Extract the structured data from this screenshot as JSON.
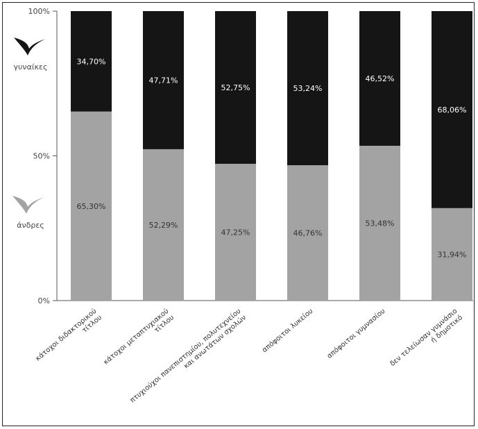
{
  "chart_data": {
    "type": "bar",
    "stacked": true,
    "percent": true,
    "categories": [
      "κάτοχοι διδακτορικού τίτλου",
      "κάτοχοι μεταπτυχιακού τίτλου",
      "πτυχιούχοι πανεπιστημίου, πολυτεχνείου και ανωτάτων σχολών",
      "απόφοιτοι λυκείου",
      "απόφοιτοι γυμνασίου",
      "δεν τελείωσαν γυμνάσιο ή δημοτικό"
    ],
    "series": [
      {
        "name": "άνδρες",
        "values": [
          65.3,
          52.29,
          47.25,
          46.76,
          53.48,
          31.94
        ],
        "labels": [
          "65,30%",
          "52,29%",
          "47,25%",
          "46,76%",
          "53,48%",
          "31,94%"
        ]
      },
      {
        "name": "γυναίκες",
        "values": [
          34.7,
          47.71,
          52.75,
          53.24,
          46.52,
          68.06
        ],
        "labels": [
          "34,70%",
          "47,71%",
          "52,75%",
          "53,24%",
          "46,52%",
          "68,06%"
        ]
      }
    ],
    "y_ticks": [
      "0%",
      "50%",
      "100%"
    ],
    "ylim": [
      0,
      100
    ],
    "grid": false,
    "legend_position": "left",
    "colors": {
      "men": "#a3a3a3",
      "women": "#151515"
    }
  }
}
